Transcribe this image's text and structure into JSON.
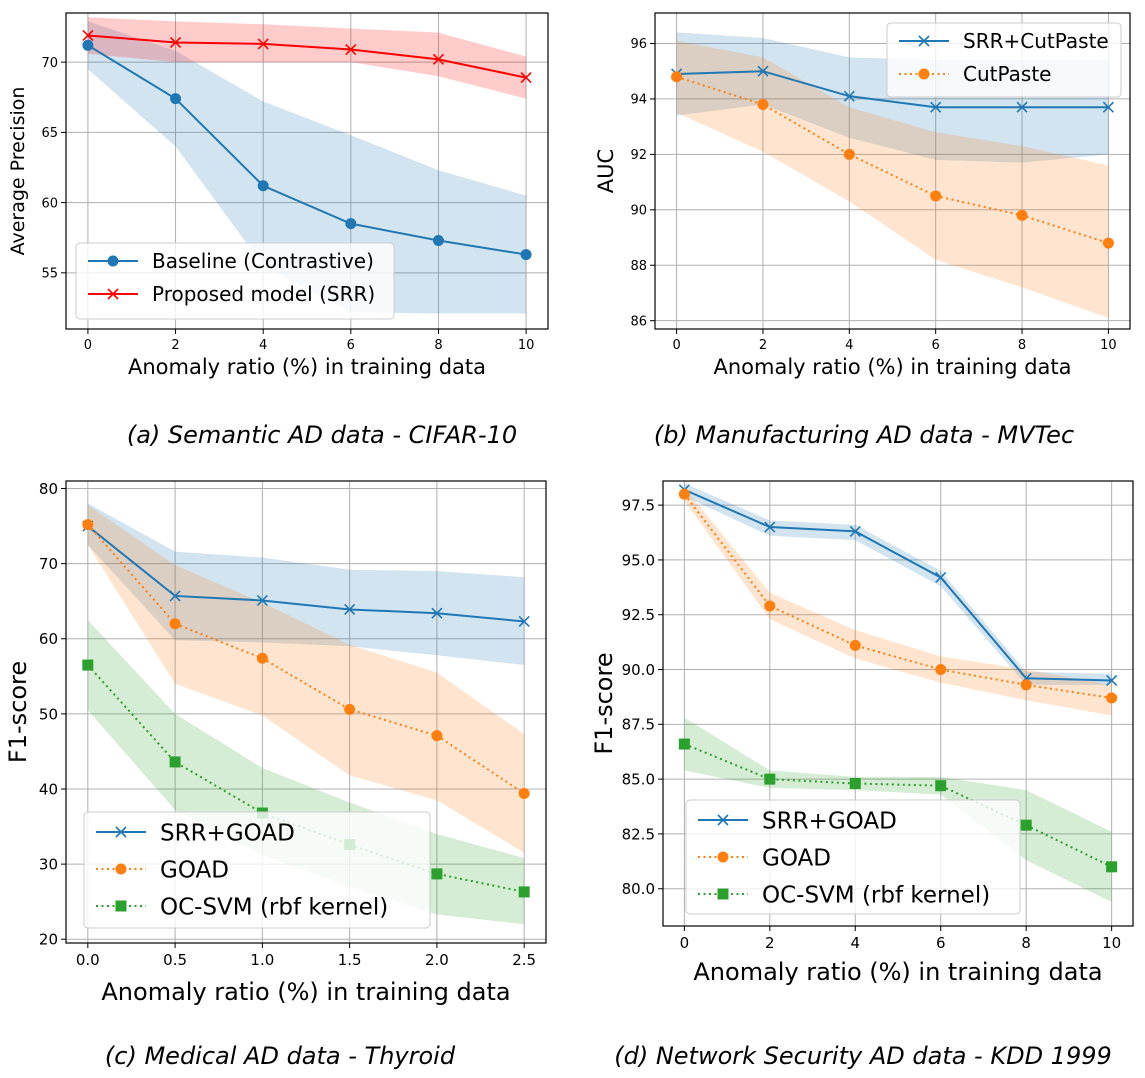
{
  "chart_data": [
    {
      "id": "a",
      "type": "line",
      "caption": "(a) Semantic AD data - CIFAR-10",
      "xlabel": "Anomaly ratio (%) in training data",
      "ylabel": "Average Precision",
      "xlim": [
        -0.5,
        10.5
      ],
      "ylim": [
        51,
        73.5
      ],
      "xticks": [
        0,
        2,
        4,
        6,
        8,
        10
      ],
      "xtick_labels": [
        "0",
        "2",
        "4",
        "6",
        "8",
        "10"
      ],
      "yticks": [
        55,
        60,
        65,
        70
      ],
      "ytick_labels": [
        "55",
        "60",
        "65",
        "70"
      ],
      "grid": true,
      "legend_position": "lower-left",
      "x": [
        0,
        2,
        4,
        6,
        8,
        10
      ],
      "series": [
        {
          "name": "Baseline (Contrastive)",
          "values": [
            71.2,
            67.4,
            61.2,
            58.5,
            57.3,
            56.3
          ],
          "band_low": [
            69.5,
            64.0,
            55.5,
            52.2,
            52.1,
            52.1
          ],
          "band_high": [
            72.9,
            70.8,
            67.2,
            64.8,
            62.3,
            60.5
          ],
          "color": "#1f77b4",
          "marker": "circle",
          "linestyle": "solid"
        },
        {
          "name": "Proposed model (SRR)",
          "values": [
            71.9,
            71.4,
            71.3,
            70.9,
            70.2,
            68.9
          ],
          "band_low": [
            70.6,
            70.0,
            70.0,
            70.0,
            69.0,
            67.4
          ],
          "band_high": [
            73.2,
            72.9,
            72.7,
            72.4,
            72.1,
            70.4
          ],
          "color": "#ff0000",
          "marker": "x",
          "linestyle": "solid"
        }
      ]
    },
    {
      "id": "b",
      "type": "line",
      "caption": "(b) Manufacturing AD data - MVTec",
      "xlabel": "Anomaly ratio (%) in training data",
      "ylabel": "AUC",
      "xlim": [
        -0.5,
        10.5
      ],
      "ylim": [
        85.7,
        97.1
      ],
      "xticks": [
        0,
        2,
        4,
        6,
        8,
        10
      ],
      "xtick_labels": [
        "0",
        "2",
        "4",
        "6",
        "8",
        "10"
      ],
      "yticks": [
        86,
        88,
        90,
        92,
        94,
        96
      ],
      "ytick_labels": [
        "86",
        "88",
        "90",
        "92",
        "94",
        "96"
      ],
      "grid": true,
      "legend_position": "upper-right",
      "x": [
        0,
        2,
        4,
        6,
        8,
        10
      ],
      "series": [
        {
          "name": "SRR+CutPaste",
          "values": [
            94.9,
            95.0,
            94.1,
            93.7,
            93.7,
            93.7
          ],
          "band_low": [
            93.4,
            93.8,
            92.6,
            91.8,
            91.7,
            92.0
          ],
          "band_high": [
            96.4,
            96.2,
            95.5,
            95.4,
            95.4,
            95.4
          ],
          "color": "#1f77b4",
          "marker": "x",
          "linestyle": "solid"
        },
        {
          "name": "CutPaste",
          "values": [
            94.8,
            93.8,
            92.0,
            90.5,
            89.8,
            88.8
          ],
          "band_low": [
            93.5,
            92.1,
            90.3,
            88.2,
            87.2,
            86.1
          ],
          "band_high": [
            96.1,
            95.5,
            93.7,
            92.8,
            92.3,
            91.6
          ],
          "color": "#ff7f0e",
          "marker": "circle",
          "linestyle": "dotted"
        }
      ]
    },
    {
      "id": "c",
      "type": "line",
      "caption": "(c) Medical AD data - Thyroid",
      "xlabel": "Anomaly ratio (%) in training data",
      "ylabel": "F1-score",
      "xlim": [
        -0.125,
        2.625
      ],
      "ylim": [
        19.5,
        81
      ],
      "xticks": [
        0,
        0.5,
        1.0,
        1.5,
        2.0,
        2.5
      ],
      "xtick_labels": [
        "0.0",
        "0.5",
        "1.0",
        "1.5",
        "2.0",
        "2.5"
      ],
      "yticks": [
        20,
        30,
        40,
        50,
        60,
        70,
        80
      ],
      "ytick_labels": [
        "20",
        "30",
        "40",
        "50",
        "60",
        "70",
        "80"
      ],
      "grid": true,
      "legend_position": "lower-left",
      "x": [
        0,
        0.5,
        1.0,
        1.5,
        2.0,
        2.5
      ],
      "series": [
        {
          "name": "SRR+GOAD",
          "values": [
            75.0,
            65.7,
            65.1,
            63.9,
            63.4,
            62.3
          ],
          "band_low": [
            72.5,
            59.8,
            59.5,
            59.0,
            57.8,
            56.5
          ],
          "band_high": [
            78.0,
            71.6,
            70.8,
            69.2,
            69.0,
            68.2
          ],
          "color": "#1f77b4",
          "marker": "x",
          "linestyle": "solid"
        },
        {
          "name": "GOAD",
          "values": [
            75.2,
            62.0,
            57.4,
            50.6,
            47.1,
            39.4
          ],
          "band_low": [
            72.5,
            54.0,
            49.8,
            41.8,
            38.5,
            31.5
          ],
          "band_high": [
            77.8,
            69.8,
            64.8,
            59.2,
            55.5,
            47.3
          ],
          "color": "#ff7f0e",
          "marker": "circle",
          "linestyle": "dotted"
        },
        {
          "name": "OC-SVM (rbf kernel)",
          "values": [
            56.5,
            43.6,
            36.8,
            32.6,
            28.7,
            26.3
          ],
          "band_low": [
            50.5,
            37.2,
            31.2,
            27.0,
            23.3,
            22.0
          ],
          "band_high": [
            62.5,
            50.0,
            42.8,
            38.2,
            34.0,
            30.8
          ],
          "color": "#2ca02c",
          "marker": "square",
          "linestyle": "dotted"
        }
      ]
    },
    {
      "id": "d",
      "type": "line",
      "caption": "(d) Network Security AD data - KDD 1999",
      "xlabel": "Anomaly ratio (%) in training data",
      "ylabel": "F1-score",
      "xlim": [
        -0.5,
        10.5
      ],
      "ylim": [
        78.3,
        98.6
      ],
      "xticks": [
        0,
        2,
        4,
        6,
        8,
        10
      ],
      "xtick_labels": [
        "0",
        "2",
        "4",
        "6",
        "8",
        "10"
      ],
      "yticks": [
        80.0,
        82.5,
        85.0,
        87.5,
        90.0,
        92.5,
        95.0,
        97.5
      ],
      "ytick_labels": [
        "80.0",
        "82.5",
        "85.0",
        "87.5",
        "90.0",
        "92.5",
        "95.0",
        "97.5"
      ],
      "grid": true,
      "legend_position": "lower-left",
      "x": [
        0,
        2,
        4,
        6,
        8,
        10
      ],
      "series": [
        {
          "name": "SRR+GOAD",
          "values": [
            98.2,
            96.5,
            96.3,
            94.2,
            89.6,
            89.5
          ],
          "band_low": [
            97.9,
            96.1,
            95.9,
            93.8,
            89.3,
            89.3
          ],
          "band_high": [
            98.5,
            96.8,
            96.6,
            94.5,
            89.9,
            89.8
          ],
          "color": "#1f77b4",
          "marker": "x",
          "linestyle": "solid"
        },
        {
          "name": "GOAD",
          "values": [
            98.0,
            92.9,
            91.1,
            90.0,
            89.3,
            88.7
          ],
          "band_low": [
            97.7,
            92.3,
            90.5,
            89.4,
            88.6,
            87.9
          ],
          "band_high": [
            98.3,
            93.5,
            91.8,
            90.6,
            90.0,
            89.3
          ],
          "color": "#ff7f0e",
          "marker": "circle",
          "linestyle": "dotted"
        },
        {
          "name": "OC-SVM (rbf kernel)",
          "values": [
            86.6,
            85.0,
            84.8,
            84.7,
            82.9,
            81.0
          ],
          "band_low": [
            85.4,
            84.6,
            84.5,
            84.3,
            81.3,
            79.4
          ],
          "band_high": [
            87.8,
            85.4,
            85.1,
            85.1,
            84.5,
            82.6
          ],
          "color": "#2ca02c",
          "marker": "square",
          "linestyle": "dotted"
        }
      ]
    }
  ]
}
